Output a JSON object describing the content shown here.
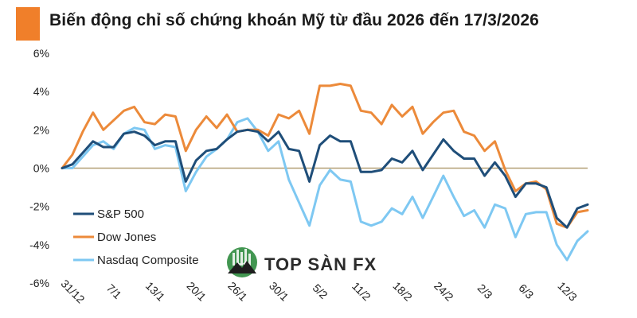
{
  "title": "Biến động chỉ số chứng khoán Mỹ từ đầu 2026 đến 17/3/2026",
  "colors": {
    "accent": "#f07f2a",
    "sp500": "#1f4e79",
    "dow": "#ec8a3a",
    "nasdaq": "#7ec8f2",
    "zero_line": "#b3a077",
    "watermark_green": "#2e8b3e"
  },
  "watermark": {
    "text": "TOP SÀN FX",
    "icon": "mountain-logo-icon"
  },
  "chart_data": {
    "type": "line",
    "title": "Biến động chỉ số chứng khoán Mỹ từ đầu 2026 đến 17/3/2026",
    "xlabel": "",
    "ylabel": "",
    "ylim": [
      -6,
      6
    ],
    "yticks": [
      6,
      4,
      2,
      0,
      -2,
      -4,
      -6
    ],
    "ytick_labels": [
      "6%",
      "4%",
      "2%",
      "0%",
      "-2%",
      "-4%",
      "-6%"
    ],
    "xticks": [
      {
        "index": 0,
        "label": "31/12"
      },
      {
        "index": 4,
        "label": "7/1"
      },
      {
        "index": 8,
        "label": "13/1"
      },
      {
        "index": 12,
        "label": "20/1"
      },
      {
        "index": 16,
        "label": "26/1"
      },
      {
        "index": 20,
        "label": "30/1"
      },
      {
        "index": 24,
        "label": "5/2"
      },
      {
        "index": 28,
        "label": "11/2"
      },
      {
        "index": 32,
        "label": "18/2"
      },
      {
        "index": 36,
        "label": "24/2"
      },
      {
        "index": 40,
        "label": "2/3"
      },
      {
        "index": 44,
        "label": "6/3"
      },
      {
        "index": 48,
        "label": "12/3"
      }
    ],
    "grid": false,
    "legend_position": "bottom-left",
    "series": [
      {
        "name": "S&P 500",
        "color": "#1f4e79",
        "values": [
          0,
          0.2,
          0.8,
          1.4,
          1.1,
          1.1,
          1.8,
          1.9,
          1.7,
          1.2,
          1.4,
          1.4,
          -0.7,
          0.4,
          0.9,
          1.0,
          1.5,
          1.9,
          2.0,
          1.9,
          1.4,
          1.9,
          1.0,
          0.9,
          -0.7,
          1.2,
          1.7,
          1.4,
          1.4,
          -0.2,
          -0.2,
          -0.1,
          0.5,
          0.3,
          0.9,
          -0.1,
          0.7,
          1.5,
          0.9,
          0.5,
          0.5,
          -0.4,
          0.3,
          -0.4,
          -1.5,
          -0.8,
          -0.8,
          -1.0,
          -2.6,
          -3.1,
          -2.1,
          -1.9
        ]
      },
      {
        "name": "Dow Jones",
        "color": "#ec8a3a",
        "values": [
          0,
          0.7,
          1.9,
          2.9,
          2.0,
          2.5,
          3.0,
          3.2,
          2.4,
          2.3,
          2.8,
          2.7,
          0.9,
          2.0,
          2.7,
          2.1,
          2.8,
          1.9,
          2.0,
          2.0,
          1.7,
          2.8,
          2.6,
          3.0,
          1.8,
          4.3,
          4.3,
          4.4,
          4.3,
          3.0,
          2.9,
          2.3,
          3.3,
          2.7,
          3.2,
          1.8,
          2.4,
          2.9,
          3.0,
          1.9,
          1.7,
          0.9,
          1.4,
          -0.1,
          -1.2,
          -0.8,
          -0.7,
          -1.1,
          -2.9,
          -3.1,
          -2.3,
          -2.2
        ]
      },
      {
        "name": "Nasdaq Composite",
        "color": "#7ec8f2",
        "values": [
          0,
          0.0,
          0.6,
          1.2,
          1.4,
          1.0,
          1.8,
          2.1,
          2.0,
          1.0,
          1.2,
          1.1,
          -1.2,
          -0.2,
          0.6,
          1.0,
          1.5,
          2.4,
          2.6,
          1.9,
          0.9,
          1.4,
          -0.6,
          -1.8,
          -3.0,
          -0.9,
          -0.1,
          -0.6,
          -0.7,
          -2.8,
          -3.0,
          -2.8,
          -2.1,
          -2.4,
          -1.5,
          -2.6,
          -1.5,
          -0.4,
          -1.5,
          -2.5,
          -2.2,
          -3.1,
          -1.9,
          -2.1,
          -3.6,
          -2.4,
          -2.3,
          -2.3,
          -4.0,
          -4.8,
          -3.8,
          -3.3
        ]
      }
    ]
  }
}
